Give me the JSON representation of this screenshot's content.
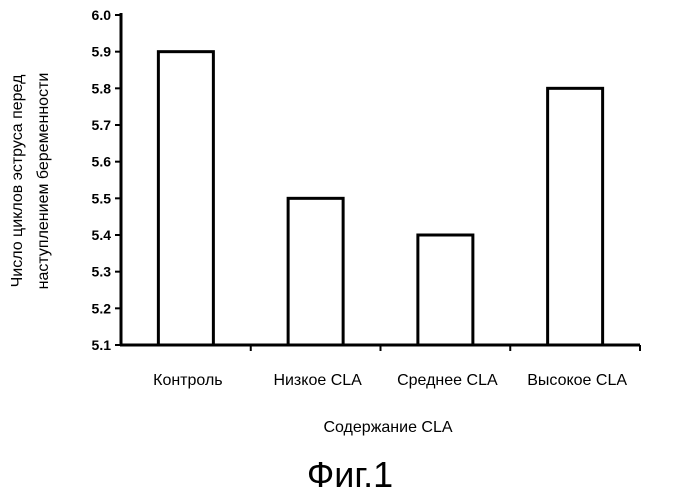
{
  "chart_data": {
    "type": "bar",
    "categories": [
      "Контроль",
      "Низкое CLA",
      "Среднее CLA",
      "Высокое CLA"
    ],
    "values": [
      5.9,
      5.5,
      5.4,
      5.8
    ],
    "xlabel": "Содержание CLA",
    "ylabel_lines": [
      "Число циклов эструса перед",
      "наступлением беременности"
    ],
    "ylim": [
      5.1,
      6.0
    ],
    "yticks": [
      "6.0",
      "5.9",
      "5.8",
      "5.7",
      "5.6",
      "5.5",
      "5.4",
      "5.3",
      "5.2",
      "5.1"
    ],
    "grid": false,
    "bar_fill": "#ffffff",
    "bar_stroke": "#000000"
  },
  "caption": "Фиг.1"
}
